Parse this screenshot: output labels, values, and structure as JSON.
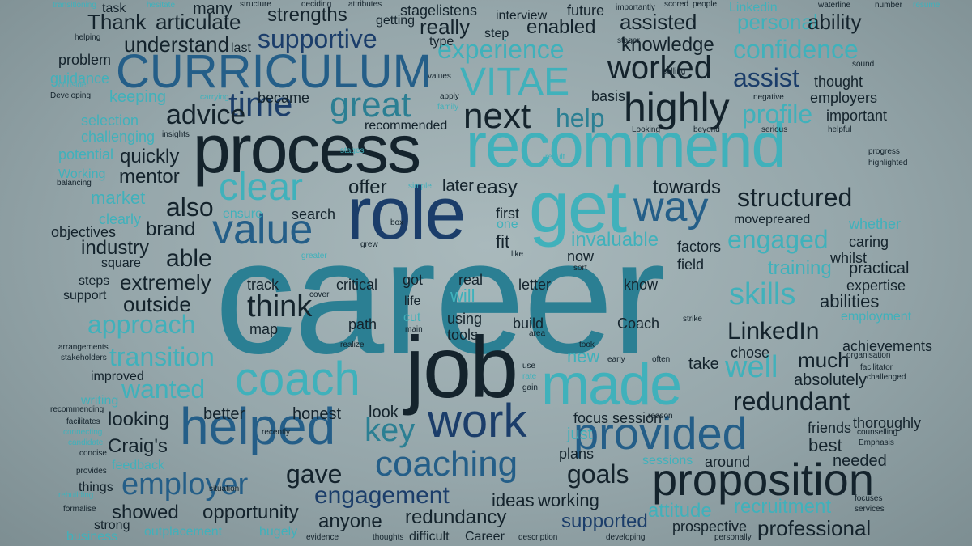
{
  "palette": {
    "background": "#9aabae",
    "dark": "#14232c",
    "navy": "#1b3d6a",
    "blue": "#245e88",
    "teal": "#2b7f93",
    "cyan": "#40b1bb",
    "light": "#5cc9cf"
  },
  "words": [
    "career",
    "role",
    "process",
    "recommend",
    "get",
    "job",
    "coach",
    "made",
    "helped",
    "work",
    "provided",
    "proposition",
    "CURRICULUM",
    "VITAE",
    "highly",
    "next",
    "time",
    "great",
    "clear",
    "value",
    "way",
    "worked",
    "structured",
    "coaching",
    "employer",
    "engaged",
    "approach",
    "skills",
    "LinkedIn",
    "transition",
    "wanted",
    "redundant",
    "goals",
    "engagement",
    "profile",
    "confidence",
    "experience",
    "supportive",
    "help",
    "assist",
    "well",
    "think",
    "key",
    "gave",
    "advice",
    "personal",
    "ability",
    "assisted",
    "strengths",
    "really",
    "enabled",
    "knowledge",
    "Thank",
    "articulate",
    "understand",
    "training",
    "invaluable",
    "abilities",
    "extremely",
    "outside",
    "able",
    "industry",
    "brand",
    "also",
    "mentor",
    "quickly",
    "redundancy",
    "opportunity",
    "showed",
    "anyone",
    "supported",
    "professional",
    "recruitment",
    "attitude",
    "Craig's",
    "looking",
    "better",
    "honest",
    "look",
    "focus",
    "session",
    "around",
    "needed",
    "friends",
    "thoroughly",
    "best",
    "much",
    "absolutely",
    "achievements",
    "chose",
    "take",
    "expertise",
    "practical",
    "whilst",
    "caring",
    "whether",
    "factors",
    "field",
    "know",
    "letter",
    "real",
    "will",
    "got",
    "critical",
    "track",
    "map",
    "path",
    "using",
    "tools",
    "build",
    "Coach",
    "offer",
    "later",
    "easy",
    "towards",
    "first",
    "one",
    "fit",
    "now",
    "search",
    "market",
    "clearly",
    "objectives",
    "potential",
    "challenging",
    "selection",
    "guidance",
    "problem",
    "keeping",
    "became",
    "recommended",
    "Working",
    "task",
    "many",
    "structure",
    "deciding",
    "attributes",
    "getting",
    "stagelistens",
    "interview",
    "future",
    "importantly",
    "scored",
    "people",
    "waterline",
    "number",
    "resume",
    "transitioning",
    "Linkedin",
    "type",
    "step",
    "stager",
    "last",
    "sound",
    "employers",
    "thought",
    "important",
    "negative",
    "basis",
    "selling",
    "values",
    "apply",
    "family",
    "consider",
    "Developing",
    "carrying",
    "insights",
    "stages",
    "result",
    "Looking",
    "beyond",
    "serious",
    "helpful",
    "progress",
    "highlighted",
    "balancing",
    "simple",
    "ensure",
    "movepreared",
    "square",
    "greater",
    "grew",
    "like",
    "sort",
    "steps",
    "support",
    "cover",
    "main",
    "realize",
    "area",
    "strike",
    "improved",
    "took",
    "early",
    "often",
    "organisation",
    "facilitator",
    "challenged",
    "stakeholders",
    "arrangements",
    "hesitate",
    "rate",
    "gain",
    "use",
    "employment",
    "writing",
    "recommending",
    "facilitates",
    "connecting",
    "candidate",
    "concise",
    "provides",
    "rebuilding",
    "formalise",
    "feedback",
    "things",
    "strong",
    "business",
    "outplacement",
    "hugely",
    "evidence",
    "thoughts",
    "difficult",
    "Career",
    "description",
    "developing",
    "prospective",
    "personally",
    "services",
    "focuses",
    "counselling",
    "Emphasis",
    "new",
    "just",
    "plans",
    "sessions",
    "ideas",
    "working",
    "recently",
    "reason",
    "situation",
    "box",
    "cut",
    "life",
    "helping"
  ]
}
